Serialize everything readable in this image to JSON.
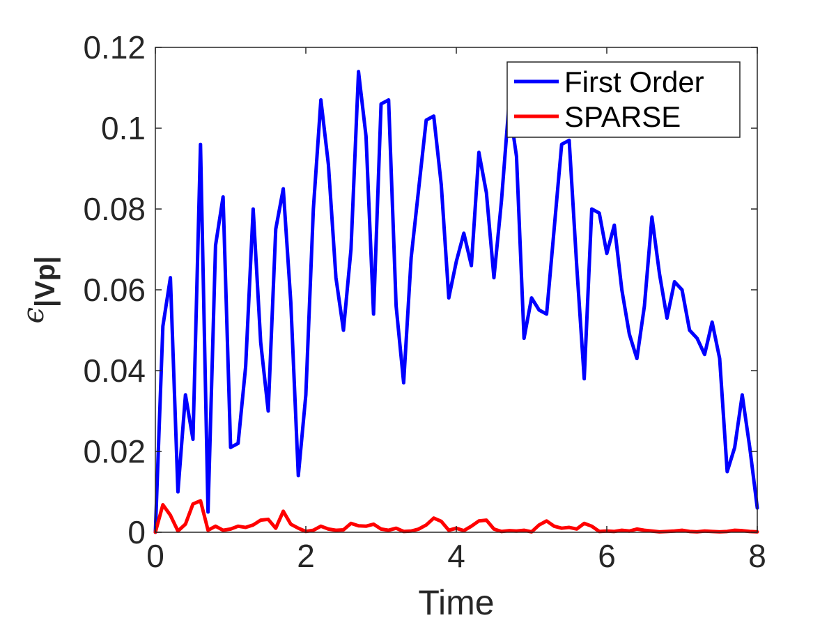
{
  "chart_data": {
    "type": "line",
    "xlabel": "Time",
    "ylabel_symbol": "ϵ",
    "ylabel_subscript": "|Vp|",
    "xlim": [
      0,
      8
    ],
    "ylim": [
      0,
      0.12
    ],
    "xticks": [
      0,
      2,
      4,
      6,
      8
    ],
    "xtick_labels": [
      "0",
      "2",
      "4",
      "6",
      "8"
    ],
    "yticks": [
      0,
      0.02,
      0.04,
      0.06,
      0.08,
      0.1,
      0.12
    ],
    "ytick_labels": [
      "0",
      "0.02",
      "0.04",
      "0.06",
      "0.08",
      "0.1",
      "0.12"
    ],
    "grid": false,
    "legend_position": "top-right",
    "series": [
      {
        "name": "First Order",
        "color": "#0000ff",
        "x": [
          0,
          0.1,
          0.2,
          0.3,
          0.4,
          0.5,
          0.6,
          0.7,
          0.8,
          0.9,
          1.0,
          1.1,
          1.2,
          1.3,
          1.4,
          1.5,
          1.6,
          1.7,
          1.8,
          1.9,
          2.0,
          2.1,
          2.2,
          2.3,
          2.4,
          2.5,
          2.6,
          2.7,
          2.8,
          2.9,
          3.0,
          3.1,
          3.2,
          3.3,
          3.4,
          3.5,
          3.6,
          3.7,
          3.8,
          3.9,
          4.0,
          4.1,
          4.2,
          4.3,
          4.4,
          4.5,
          4.6,
          4.7,
          4.8,
          4.9,
          5.0,
          5.1,
          5.2,
          5.3,
          5.4,
          5.5,
          5.6,
          5.7,
          5.8,
          5.9,
          6.0,
          6.1,
          6.2,
          6.3,
          6.4,
          6.5,
          6.6,
          6.7,
          6.8,
          6.9,
          7.0,
          7.1,
          7.2,
          7.3,
          7.4,
          7.5,
          7.6,
          7.7,
          7.8,
          7.9,
          8.0
        ],
        "values": [
          0.0,
          0.051,
          0.063,
          0.01,
          0.034,
          0.023,
          0.096,
          0.005,
          0.071,
          0.083,
          0.021,
          0.022,
          0.041,
          0.08,
          0.047,
          0.03,
          0.075,
          0.085,
          0.057,
          0.014,
          0.034,
          0.08,
          0.107,
          0.091,
          0.063,
          0.05,
          0.07,
          0.114,
          0.098,
          0.054,
          0.106,
          0.107,
          0.056,
          0.037,
          0.068,
          0.085,
          0.102,
          0.103,
          0.086,
          0.058,
          0.067,
          0.074,
          0.066,
          0.094,
          0.084,
          0.063,
          0.082,
          0.106,
          0.093,
          0.048,
          0.058,
          0.055,
          0.054,
          0.075,
          0.096,
          0.097,
          0.066,
          0.038,
          0.08,
          0.079,
          0.069,
          0.076,
          0.06,
          0.049,
          0.043,
          0.056,
          0.078,
          0.064,
          0.053,
          0.062,
          0.06,
          0.05,
          0.048,
          0.044,
          0.052,
          0.043,
          0.015,
          0.021,
          0.034,
          0.021,
          0.006
        ]
      },
      {
        "name": "SPARSE",
        "color": "#ff0000",
        "x": [
          0,
          0.1,
          0.2,
          0.3,
          0.4,
          0.5,
          0.6,
          0.7,
          0.8,
          0.9,
          1.0,
          1.1,
          1.2,
          1.3,
          1.4,
          1.5,
          1.6,
          1.7,
          1.8,
          1.9,
          2.0,
          2.1,
          2.2,
          2.3,
          2.4,
          2.5,
          2.6,
          2.7,
          2.8,
          2.9,
          3.0,
          3.1,
          3.2,
          3.3,
          3.4,
          3.5,
          3.6,
          3.7,
          3.8,
          3.9,
          4.0,
          4.1,
          4.2,
          4.3,
          4.4,
          4.5,
          4.6,
          4.7,
          4.8,
          4.9,
          5.0,
          5.1,
          5.2,
          5.3,
          5.4,
          5.5,
          5.6,
          5.7,
          5.8,
          5.9,
          6.0,
          6.1,
          6.2,
          6.3,
          6.4,
          6.5,
          6.6,
          6.7,
          6.8,
          6.9,
          7.0,
          7.1,
          7.2,
          7.3,
          7.4,
          7.5,
          7.6,
          7.7,
          7.8,
          7.9,
          8.0
        ],
        "values": [
          0.0,
          0.0068,
          0.0042,
          0.0003,
          0.002,
          0.007,
          0.0078,
          0.0005,
          0.0015,
          0.0005,
          0.0008,
          0.0015,
          0.0012,
          0.0018,
          0.003,
          0.0032,
          0.001,
          0.0052,
          0.002,
          0.001,
          0.0002,
          0.0005,
          0.0015,
          0.0008,
          0.0005,
          0.0006,
          0.0022,
          0.0016,
          0.0015,
          0.002,
          0.0008,
          0.0005,
          0.001,
          0.0002,
          0.0003,
          0.0008,
          0.0018,
          0.0035,
          0.0027,
          0.0005,
          0.001,
          0.0004,
          0.0015,
          0.0028,
          0.003,
          0.0008,
          0.0002,
          0.0004,
          0.0003,
          0.0005,
          0.0001,
          0.0018,
          0.0028,
          0.0015,
          0.001,
          0.0012,
          0.0008,
          0.0022,
          0.0015,
          0.0002,
          0.0003,
          0.0002,
          0.0005,
          0.0003,
          0.0008,
          0.0005,
          0.0003,
          0.0001,
          0.0002,
          0.0003,
          0.0005,
          0.0002,
          0.0001,
          0.0003,
          0.0002,
          0.0001,
          0.0002,
          0.0005,
          0.0004,
          0.0002,
          0.0001
        ]
      }
    ]
  }
}
